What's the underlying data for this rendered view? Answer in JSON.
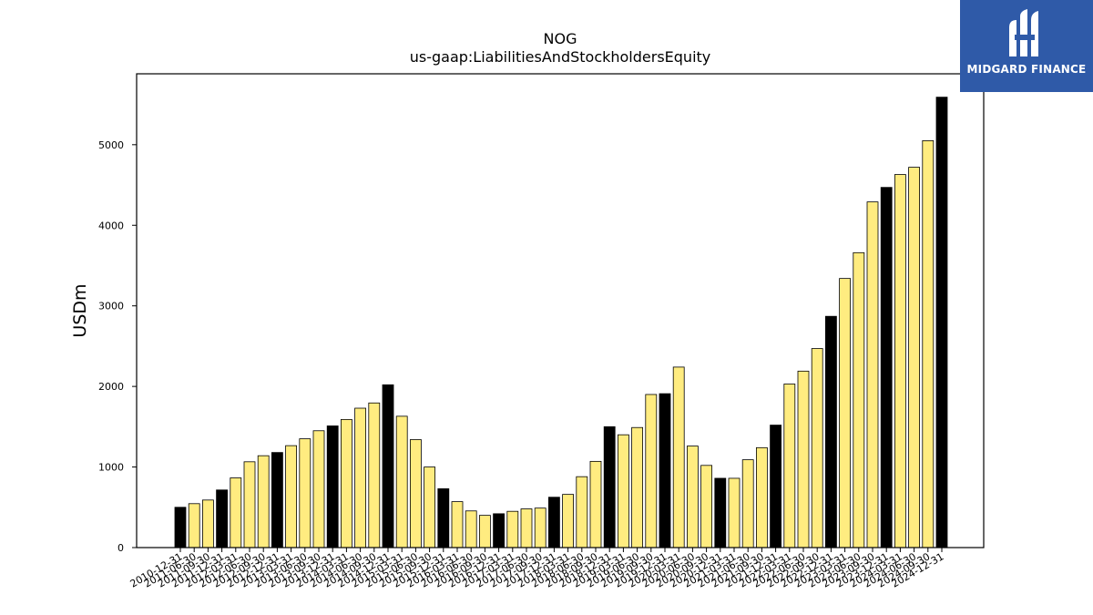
{
  "chart_data": {
    "type": "bar",
    "title": "NOG",
    "subtitle": "us-gaap:LiabilitiesAndStockholdersEquity",
    "xlabel": "",
    "ylabel": "USDm",
    "ylim": [
      0,
      5880
    ],
    "yticks": [
      0,
      1000,
      2000,
      3000,
      4000,
      5000
    ],
    "grid": false,
    "colors": {
      "annual": "#000000",
      "quarterly": "#ffec80",
      "edge": "#000000"
    },
    "categories": [
      "2010-12-31",
      "2011-06-30",
      "2011-09-30",
      "2011-12-31",
      "2012-03-31",
      "2012-06-30",
      "2012-09-30",
      "2012-12-31",
      "2013-03-31",
      "2013-06-30",
      "2013-09-30",
      "2013-12-31",
      "2014-03-31",
      "2014-06-30",
      "2014-09-30",
      "2014-12-31",
      "2015-03-31",
      "2015-06-30",
      "2015-09-30",
      "2015-12-31",
      "2016-03-31",
      "2016-06-30",
      "2016-09-30",
      "2016-12-31",
      "2017-03-31",
      "2017-06-30",
      "2017-09-30",
      "2017-12-31",
      "2018-03-31",
      "2018-06-30",
      "2018-09-30",
      "2018-12-31",
      "2019-03-31",
      "2019-06-30",
      "2019-09-30",
      "2019-12-31",
      "2020-03-31",
      "2020-06-30",
      "2020-09-30",
      "2020-12-31",
      "2021-03-31",
      "2021-06-30",
      "2021-09-30",
      "2021-12-31",
      "2022-03-31",
      "2022-06-30",
      "2022-09-30",
      "2022-12-31",
      "2023-03-31",
      "2023-06-30",
      "2023-09-30",
      "2023-12-31",
      "2024-03-31",
      "2024-06-30",
      "2024-09-30",
      "2024-12-31"
    ],
    "values": [
      500,
      545,
      590,
      715,
      865,
      1065,
      1140,
      1180,
      1265,
      1350,
      1450,
      1510,
      1590,
      1730,
      1795,
      2020,
      1630,
      1340,
      1000,
      730,
      570,
      455,
      400,
      420,
      450,
      480,
      490,
      625,
      660,
      880,
      1070,
      1500,
      1400,
      1490,
      1900,
      1910,
      2240,
      1260,
      1020,
      860,
      860,
      1090,
      1240,
      1520,
      2030,
      2190,
      2470,
      2870,
      3340,
      3660,
      4290,
      4470,
      4630,
      4720,
      5050,
      5590
    ],
    "annual_flags": [
      true,
      false,
      false,
      true,
      false,
      false,
      false,
      true,
      false,
      false,
      false,
      true,
      false,
      false,
      false,
      true,
      false,
      false,
      false,
      true,
      false,
      false,
      false,
      true,
      false,
      false,
      false,
      true,
      false,
      false,
      false,
      true,
      false,
      false,
      false,
      true,
      false,
      false,
      false,
      true,
      false,
      false,
      false,
      true,
      false,
      false,
      false,
      true,
      false,
      false,
      false,
      true,
      false,
      false,
      false,
      true
    ]
  },
  "logo": {
    "text": "MIDGARD FINANCE",
    "color": "#2f5aa8"
  }
}
